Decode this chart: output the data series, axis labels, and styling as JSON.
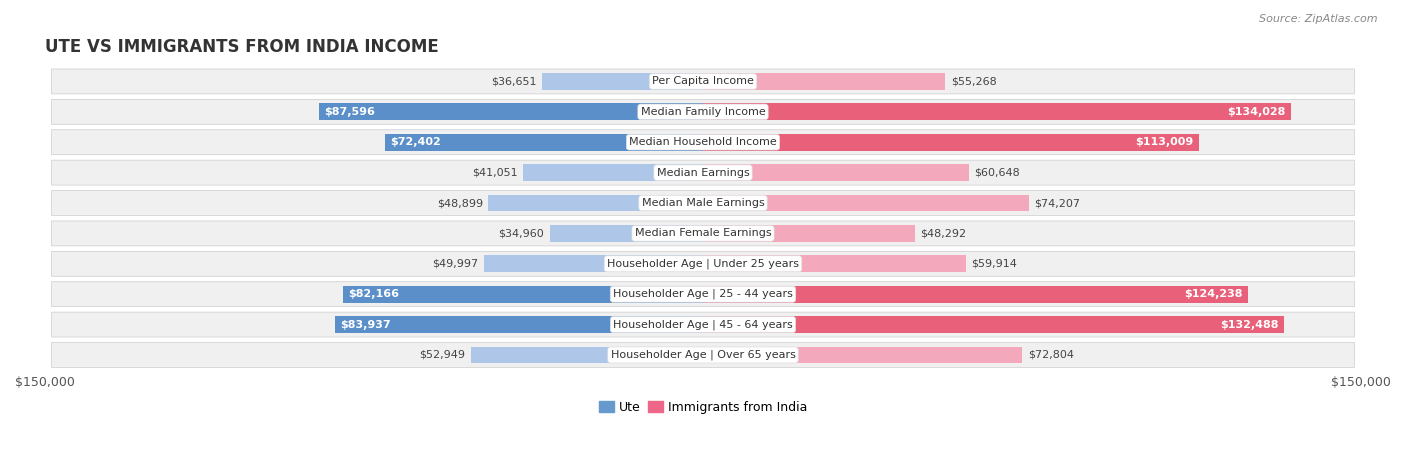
{
  "title": "UTE VS IMMIGRANTS FROM INDIA INCOME",
  "source": "Source: ZipAtlas.com",
  "categories": [
    "Per Capita Income",
    "Median Family Income",
    "Median Household Income",
    "Median Earnings",
    "Median Male Earnings",
    "Median Female Earnings",
    "Householder Age | Under 25 years",
    "Householder Age | 25 - 44 years",
    "Householder Age | 45 - 64 years",
    "Householder Age | Over 65 years"
  ],
  "ute_values": [
    36651,
    87596,
    72402,
    41051,
    48899,
    34960,
    49997,
    82166,
    83937,
    52949
  ],
  "india_values": [
    55268,
    134028,
    113009,
    60648,
    74207,
    48292,
    59914,
    124238,
    132488,
    72804
  ],
  "ute_color_light": "#aec6e8",
  "ute_color_strong": "#5b8fc9",
  "india_color_light": "#f4a8bb",
  "india_color_strong": "#e8607a",
  "ute_threshold": 70000,
  "india_threshold": 100000,
  "axis_limit": 150000,
  "bg_color": "#ffffff",
  "row_bg": "#f0f0f0",
  "label_fontsize": 8.0,
  "title_fontsize": 12,
  "value_fontsize": 8.0,
  "bar_height": 0.55,
  "legend_ute_color": "#6699cc",
  "legend_india_color": "#ee6688"
}
